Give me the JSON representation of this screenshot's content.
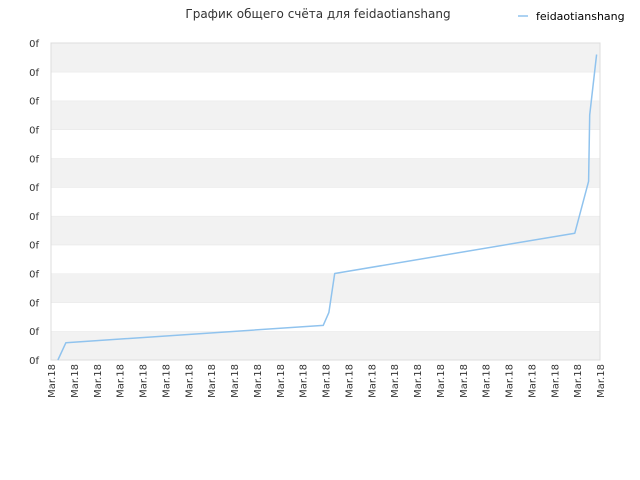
{
  "chart_data": {
    "type": "line",
    "title": "График общего счёта для feidaotianshang",
    "xlabel": "",
    "ylabel": "",
    "legend_position": "top-right",
    "grid": true,
    "band_colors": [
      "#f2f2f2",
      "#ffffff"
    ],
    "ylim": [
      0,
      11
    ],
    "y_ticks": [
      0,
      1,
      2,
      3,
      4,
      5,
      6,
      7,
      8,
      9,
      10,
      11
    ],
    "y_tick_labels": [
      "0f",
      "0f",
      "0f",
      "0f",
      "0f",
      "0f",
      "0f",
      "0f",
      "0f",
      "0f",
      "0f",
      "0f"
    ],
    "x_tick_labels": [
      "Mar.18",
      "Mar.18",
      "Mar.18",
      "Mar.18",
      "Mar.18",
      "Mar.18",
      "Mar.18",
      "Mar.18",
      "Mar.18",
      "Mar.18",
      "Mar.18",
      "Mar.18",
      "Mar.18",
      "Mar.18",
      "Mar.18",
      "Mar.18",
      "Mar.18",
      "Mar.18",
      "Mar.18",
      "Mar.18",
      "Mar.18",
      "Mar.18",
      "Mar.18",
      "Mar.18",
      "Mar.18"
    ],
    "xlim": [
      0,
      24
    ],
    "series": [
      {
        "name": "feidaotianshang",
        "color": "#90c3ee",
        "x": [
          0.3,
          0.65,
          11.9,
          12.15,
          12.4,
          22.9,
          23.5,
          23.55,
          23.85
        ],
        "y": [
          0.0,
          0.6,
          1.2,
          1.65,
          3.0,
          4.4,
          6.2,
          8.5,
          10.6
        ]
      }
    ]
  }
}
